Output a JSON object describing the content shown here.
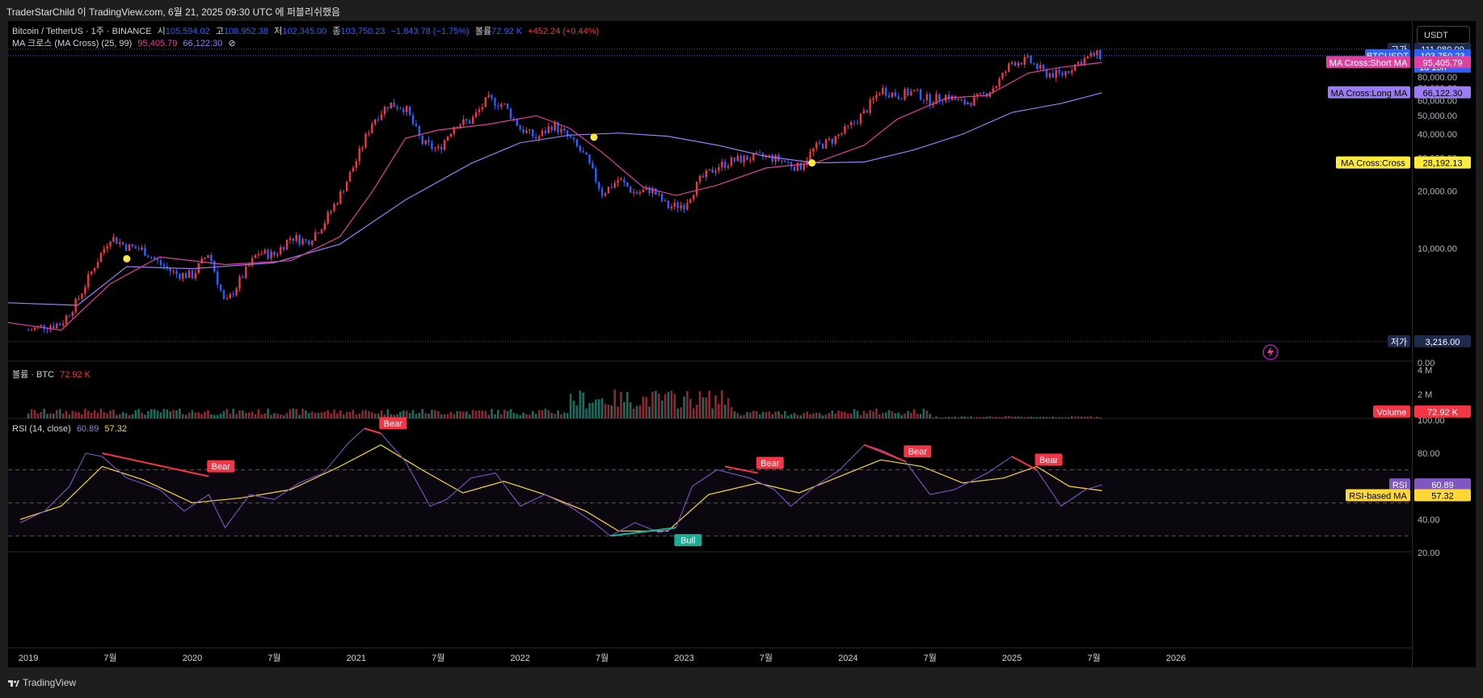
{
  "header": {
    "publish_line": "TraderStarChild 이 TradingView.com, 6월 21, 2025 09:30 UTC 에 퍼블리쉬했음",
    "symbol_title": "Bitcoin / TetherUS · 1주 · BINANCE",
    "o_label": "시",
    "o_value": "105,594.02",
    "h_label": "고",
    "h_value": "108,952.38",
    "l_label": "저",
    "l_value": "102,345.00",
    "c_label": "종",
    "c_value": "103,750.23",
    "change": "−1,843.78 (−1.75%)",
    "vol_label": "볼륨",
    "vol_value": "72.92 K",
    "vol_change": "+452.24 (+0.44%)",
    "ma_title": "MA 크로스 (MA Cross) (25, 99)",
    "ma_short": "95,405.79",
    "ma_long": "66,122.30",
    "ma_symbol": "⊘",
    "currency_button": "USDT"
  },
  "volume_pane": {
    "title": "볼륨 · BTC",
    "value": "72.92 K"
  },
  "rsi_pane": {
    "title": "RSI (14, close)",
    "rsi_value": "60.89",
    "ma_value": "57.32"
  },
  "footer": {
    "brand": "TradingView"
  },
  "colors": {
    "up": "#f23645",
    "down": "#2962ff",
    "short_ma": "#e040a0",
    "long_ma": "#9c7cf4",
    "cross_dot": "#ffeb3b",
    "rsi": "#7e57c2",
    "rsi_ma": "#fdd835",
    "bear": "#f23645",
    "bull": "#22ab94"
  },
  "chart_data": {
    "type": "candlestick",
    "price_axis": {
      "ticks": [
        0,
        10000,
        20000,
        30000,
        40000,
        50000,
        60000,
        70000,
        80000,
        90000,
        110000
      ],
      "tick_labels": [
        "0.00",
        "10,000.00",
        "20,000.00",
        "30,000.00",
        "40,000.00",
        "50,000.00",
        "60,000.00",
        "70,000.00",
        "80,000.00",
        "90,000.00",
        "110,000.00"
      ]
    },
    "time_axis_labels": [
      "2019",
      "7월",
      "2020",
      "7월",
      "2021",
      "7월",
      "2022",
      "7월",
      "2023",
      "7월",
      "2024",
      "7월",
      "2025",
      "7월",
      "2026"
    ],
    "time_axis_positions": [
      2019.0,
      2019.5,
      2020.0,
      2020.5,
      2021.0,
      2021.5,
      2022.0,
      2022.5,
      2023.0,
      2023.5,
      2024.0,
      2024.5,
      2025.0,
      2025.5,
      2026.0
    ],
    "close_path": [
      [
        2019.0,
        3700
      ],
      [
        2019.1,
        3900
      ],
      [
        2019.2,
        4000
      ],
      [
        2019.3,
        5300
      ],
      [
        2019.4,
        8000
      ],
      [
        2019.5,
        11500
      ],
      [
        2019.6,
        10200
      ],
      [
        2019.7,
        9800
      ],
      [
        2019.8,
        8300
      ],
      [
        2019.9,
        7300
      ],
      [
        2020.0,
        7200
      ],
      [
        2020.1,
        9500
      ],
      [
        2020.2,
        5000
      ],
      [
        2020.3,
        7000
      ],
      [
        2020.4,
        9500
      ],
      [
        2020.5,
        9200
      ],
      [
        2020.6,
        11500
      ],
      [
        2020.7,
        10800
      ],
      [
        2020.8,
        13500
      ],
      [
        2020.9,
        19000
      ],
      [
        2021.0,
        29000
      ],
      [
        2021.1,
        47000
      ],
      [
        2021.2,
        58000
      ],
      [
        2021.3,
        55000
      ],
      [
        2021.4,
        36000
      ],
      [
        2021.5,
        33000
      ],
      [
        2021.6,
        45000
      ],
      [
        2021.7,
        47000
      ],
      [
        2021.8,
        61000
      ],
      [
        2021.9,
        57000
      ],
      [
        2022.0,
        43000
      ],
      [
        2022.1,
        38000
      ],
      [
        2022.2,
        45000
      ],
      [
        2022.3,
        38000
      ],
      [
        2022.4,
        30000
      ],
      [
        2022.5,
        19500
      ],
      [
        2022.6,
        23000
      ],
      [
        2022.7,
        19500
      ],
      [
        2022.8,
        20500
      ],
      [
        2022.9,
        16500
      ],
      [
        2023.0,
        17000
      ],
      [
        2023.1,
        23000
      ],
      [
        2023.2,
        27000
      ],
      [
        2023.3,
        29000
      ],
      [
        2023.4,
        30000
      ],
      [
        2023.5,
        30500
      ],
      [
        2023.6,
        29000
      ],
      [
        2023.7,
        26500
      ],
      [
        2023.8,
        34000
      ],
      [
        2023.9,
        37000
      ],
      [
        2024.0,
        43000
      ],
      [
        2024.1,
        52000
      ],
      [
        2024.2,
        69000
      ],
      [
        2024.3,
        64000
      ],
      [
        2024.4,
        67000
      ],
      [
        2024.5,
        60000
      ],
      [
        2024.6,
        64000
      ],
      [
        2024.7,
        58000
      ],
      [
        2024.8,
        62000
      ],
      [
        2024.9,
        72000
      ],
      [
        2025.0,
        96000
      ],
      [
        2025.1,
        98000
      ],
      [
        2025.2,
        84000
      ],
      [
        2025.3,
        82000
      ],
      [
        2025.4,
        95000
      ],
      [
        2025.5,
        105000
      ],
      [
        2025.55,
        103750
      ]
    ],
    "short_ma": {
      "name": "MA Cross:Short MA",
      "label": "95,405.79",
      "points": [
        [
          2018.75,
          4200
        ],
        [
          2019.2,
          3700
        ],
        [
          2019.5,
          6500
        ],
        [
          2019.8,
          9000
        ],
        [
          2020.2,
          8200
        ],
        [
          2020.6,
          8600
        ],
        [
          2020.9,
          11500
        ],
        [
          2021.1,
          20000
        ],
        [
          2021.3,
          38000
        ],
        [
          2021.5,
          42000
        ],
        [
          2021.8,
          45000
        ],
        [
          2022.1,
          50000
        ],
        [
          2022.3,
          43000
        ],
        [
          2022.5,
          32000
        ],
        [
          2022.75,
          21000
        ],
        [
          2022.95,
          19000
        ],
        [
          2023.2,
          21500
        ],
        [
          2023.5,
          26500
        ],
        [
          2023.8,
          28200
        ],
        [
          2024.1,
          35000
        ],
        [
          2024.3,
          48000
        ],
        [
          2024.6,
          62000
        ],
        [
          2024.85,
          64000
        ],
        [
          2025.1,
          84000
        ],
        [
          2025.3,
          90000
        ],
        [
          2025.55,
          95400
        ]
      ]
    },
    "long_ma": {
      "name": "MA Cross:Long MA",
      "label": "66,122.30",
      "points": [
        [
          2018.75,
          5200
        ],
        [
          2019.3,
          5000
        ],
        [
          2019.6,
          8000
        ],
        [
          2020.0,
          7800
        ],
        [
          2020.5,
          8400
        ],
        [
          2020.9,
          10500
        ],
        [
          2021.3,
          18000
        ],
        [
          2021.7,
          28000
        ],
        [
          2022.0,
          36000
        ],
        [
          2022.3,
          39500
        ],
        [
          2022.6,
          40500
        ],
        [
          2022.9,
          39000
        ],
        [
          2023.2,
          35000
        ],
        [
          2023.5,
          30500
        ],
        [
          2023.8,
          28200
        ],
        [
          2024.1,
          28500
        ],
        [
          2024.4,
          33000
        ],
        [
          2024.7,
          40000
        ],
        [
          2025.0,
          52000
        ],
        [
          2025.3,
          58000
        ],
        [
          2025.55,
          66100
        ]
      ]
    },
    "cross_points": [
      [
        2019.6,
        8800
      ],
      [
        2022.45,
        38500
      ],
      [
        2023.78,
        28192
      ]
    ],
    "high_marker": {
      "label": "고가",
      "value": "111,980.00",
      "price": 111980
    },
    "low_marker": {
      "label": "저가",
      "value": "3,216.00",
      "price": 3216
    },
    "last_price": {
      "symbol": "BTCUSDT",
      "value": "103,750.23",
      "countdown": "1d 15h",
      "price": 103750
    },
    "cross_label": {
      "name": "MA Cross:Cross",
      "value": "28,192.13",
      "price": 28192
    },
    "volume": {
      "axis_labels": [
        "4 M",
        "2 M"
      ],
      "axis_values": [
        4000000,
        2000000
      ],
      "last_label": "Volume",
      "last_value": "72.92 K"
    },
    "rsi": {
      "axis_labels": [
        "100.00",
        "80.00",
        "40.00",
        "20.00"
      ],
      "axis_values": [
        100,
        80,
        40,
        20
      ],
      "bands": [
        70,
        50,
        30
      ],
      "series_label": "RSI",
      "series_value": "60.89",
      "ma_label": "RSI-based MA",
      "ma_value": "57.32",
      "points": [
        [
          2018.95,
          38
        ],
        [
          2019.1,
          45
        ],
        [
          2019.25,
          60
        ],
        [
          2019.35,
          80
        ],
        [
          2019.45,
          78
        ],
        [
          2019.6,
          65
        ],
        [
          2019.8,
          58
        ],
        [
          2019.95,
          45
        ],
        [
          2020.1,
          55
        ],
        [
          2020.2,
          35
        ],
        [
          2020.35,
          55
        ],
        [
          2020.5,
          52
        ],
        [
          2020.65,
          62
        ],
        [
          2020.8,
          68
        ],
        [
          2020.95,
          86
        ],
        [
          2021.05,
          95
        ],
        [
          2021.15,
          92
        ],
        [
          2021.3,
          75
        ],
        [
          2021.45,
          48
        ],
        [
          2021.55,
          52
        ],
        [
          2021.7,
          65
        ],
        [
          2021.85,
          68
        ],
        [
          2022.0,
          48
        ],
        [
          2022.15,
          55
        ],
        [
          2022.3,
          48
        ],
        [
          2022.45,
          38
        ],
        [
          2022.55,
          30
        ],
        [
          2022.7,
          38
        ],
        [
          2022.85,
          32
        ],
        [
          2022.95,
          35
        ],
        [
          2023.05,
          60
        ],
        [
          2023.2,
          70
        ],
        [
          2023.4,
          65
        ],
        [
          2023.55,
          58
        ],
        [
          2023.65,
          48
        ],
        [
          2023.8,
          60
        ],
        [
          2023.95,
          70
        ],
        [
          2024.1,
          85
        ],
        [
          2024.2,
          82
        ],
        [
          2024.35,
          75
        ],
        [
          2024.5,
          55
        ],
        [
          2024.65,
          58
        ],
        [
          2024.85,
          68
        ],
        [
          2025.0,
          78
        ],
        [
          2025.15,
          70
        ],
        [
          2025.3,
          48
        ],
        [
          2025.45,
          58
        ],
        [
          2025.55,
          60.89
        ]
      ],
      "ma_points": [
        [
          2018.95,
          40
        ],
        [
          2019.2,
          48
        ],
        [
          2019.45,
          72
        ],
        [
          2019.7,
          64
        ],
        [
          2020.0,
          50
        ],
        [
          2020.3,
          53
        ],
        [
          2020.6,
          58
        ],
        [
          2020.9,
          72
        ],
        [
          2021.15,
          85
        ],
        [
          2021.4,
          70
        ],
        [
          2021.65,
          56
        ],
        [
          2021.9,
          63
        ],
        [
          2022.15,
          55
        ],
        [
          2022.4,
          45
        ],
        [
          2022.6,
          33
        ],
        [
          2022.9,
          33
        ],
        [
          2023.15,
          55
        ],
        [
          2023.45,
          62
        ],
        [
          2023.7,
          56
        ],
        [
          2023.95,
          66
        ],
        [
          2024.2,
          76
        ],
        [
          2024.45,
          72
        ],
        [
          2024.7,
          62
        ],
        [
          2024.95,
          65
        ],
        [
          2025.15,
          72
        ],
        [
          2025.35,
          60
        ],
        [
          2025.55,
          57.32
        ]
      ],
      "divergences": [
        {
          "label": "Bear",
          "from": [
            2019.45,
            80
          ],
          "to": [
            2020.1,
            66
          ]
        },
        {
          "label": "Bear",
          "from": [
            2021.05,
            95
          ],
          "to": [
            2021.15,
            92
          ]
        },
        {
          "label": "Bull",
          "from": [
            2022.55,
            30
          ],
          "to": [
            2022.95,
            35
          ]
        },
        {
          "label": "Bear",
          "from": [
            2023.25,
            72
          ],
          "to": [
            2023.45,
            68
          ]
        },
        {
          "label": "Bear",
          "from": [
            2024.1,
            85
          ],
          "to": [
            2024.35,
            75
          ]
        },
        {
          "label": "Bear",
          "from": [
            2025.0,
            78
          ],
          "to": [
            2025.15,
            70
          ]
        }
      ]
    }
  }
}
